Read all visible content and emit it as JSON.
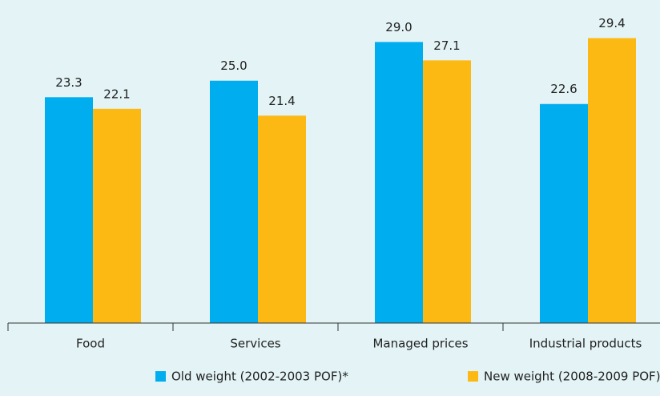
{
  "chart_data": {
    "type": "bar",
    "categories": [
      "Food",
      "Services",
      "Managed prices",
      "Industrial products"
    ],
    "series": [
      {
        "name": "Old weight (2002-2003 POF)*",
        "color": "#00aeef",
        "values": [
          23.3,
          25.0,
          29.0,
          22.6
        ],
        "value_labels": [
          "23.3",
          "25.0",
          "29.0",
          "22.6"
        ]
      },
      {
        "name": "New weight (2008-2009 POF)",
        "color": "#fdb913",
        "values": [
          22.1,
          21.4,
          27.1,
          29.4
        ],
        "value_labels": [
          "22.1",
          "21.4",
          "27.1",
          "29.4"
        ]
      }
    ],
    "ylim": [
      0,
      33
    ],
    "grid": false
  }
}
